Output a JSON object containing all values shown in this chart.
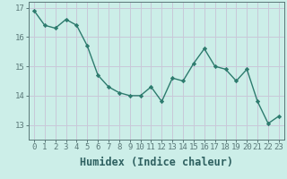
{
  "x": [
    0,
    1,
    2,
    3,
    4,
    5,
    6,
    7,
    8,
    9,
    10,
    11,
    12,
    13,
    14,
    15,
    16,
    17,
    18,
    19,
    20,
    21,
    22,
    23
  ],
  "y": [
    16.9,
    16.4,
    16.3,
    16.6,
    16.4,
    15.7,
    14.7,
    14.3,
    14.1,
    14.0,
    14.0,
    14.3,
    13.8,
    14.6,
    14.5,
    15.1,
    15.6,
    15.0,
    14.9,
    14.5,
    14.9,
    13.8,
    13.05,
    13.3
  ],
  "xlabel": "Humidex (Indice chaleur)",
  "ylabel": "",
  "xlim": [
    -0.5,
    23.5
  ],
  "ylim": [
    12.5,
    17.2
  ],
  "yticks": [
    13,
    14,
    15,
    16,
    17
  ],
  "xticks": [
    0,
    1,
    2,
    3,
    4,
    5,
    6,
    7,
    8,
    9,
    10,
    11,
    12,
    13,
    14,
    15,
    16,
    17,
    18,
    19,
    20,
    21,
    22,
    23
  ],
  "line_color": "#2d7b6e",
  "marker_color": "#2d7b6e",
  "bg_color": "#cceee8",
  "grid_color_x": "#c8c8d8",
  "grid_color_y": "#c8c8d8",
  "axis_color": "#5a7878",
  "tick_label_color": "#2e6060",
  "xlabel_color": "#2e6060",
  "tick_fontsize": 6.5,
  "xlabel_fontsize": 8.5
}
